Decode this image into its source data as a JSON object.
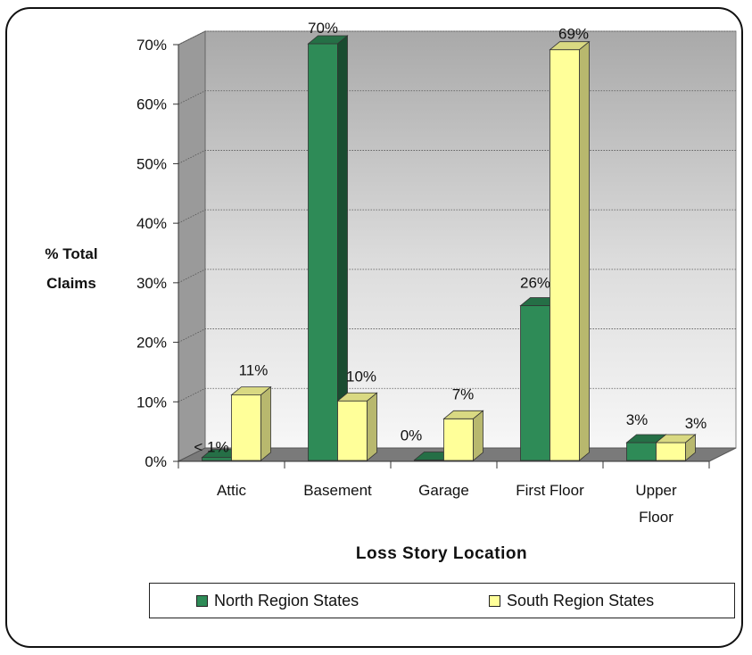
{
  "chart_data": {
    "type": "bar",
    "title": "",
    "ylabel_lines": [
      "% Total",
      "Claims"
    ],
    "xlabel": "Loss Story Location",
    "ylim": [
      0,
      70
    ],
    "yticks": [
      "0%",
      "10%",
      "20%",
      "30%",
      "40%",
      "50%",
      "60%",
      "70%"
    ],
    "ytick_values": [
      0,
      10,
      20,
      30,
      40,
      50,
      60,
      70
    ],
    "categories": [
      [
        "Attic"
      ],
      [
        "Basement"
      ],
      [
        "Garage"
      ],
      [
        "First Floor"
      ],
      [
        "Upper",
        "Floor"
      ]
    ],
    "series": [
      {
        "name": "North Region States",
        "color": "#2e8b57",
        "values": [
          0.5,
          70,
          0,
          26,
          3
        ],
        "labels": [
          "< 1%",
          "70%",
          "0%",
          "26%",
          "3%"
        ]
      },
      {
        "name": "South Region States",
        "color": "#ffff99",
        "values": [
          11,
          10,
          7,
          69,
          3
        ],
        "labels": [
          "11%",
          "10%",
          "7%",
          "69%",
          "3%"
        ]
      }
    ],
    "grid": true,
    "legend_position": "bottom"
  }
}
